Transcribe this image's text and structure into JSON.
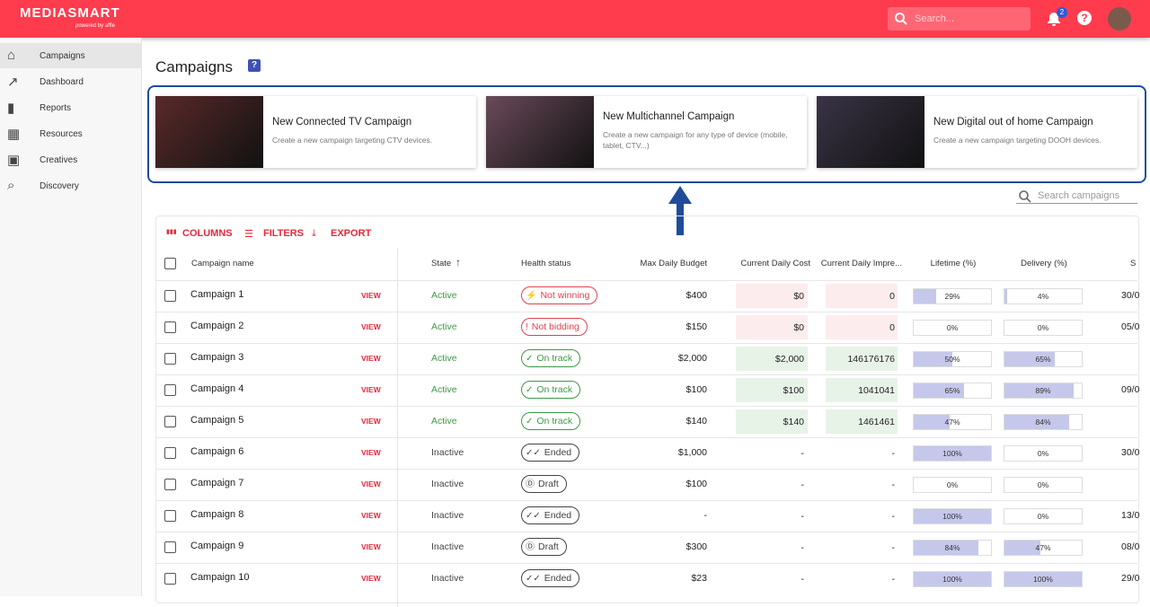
{
  "header": {
    "logo": "MEDIASMART",
    "logo_sub": "powered by affle",
    "search_placeholder": "Search...",
    "notification_count": "2"
  },
  "sidebar": {
    "items": [
      "Campaigns",
      "Dashboard",
      "Reports",
      "Resources",
      "Creatives",
      "Discovery"
    ]
  },
  "page": {
    "title": "Campaigns"
  },
  "cards": [
    {
      "title": "New Connected TV Campaign",
      "desc": "Create a new campaign targeting CTV devices.",
      "color": "#5a2a2a"
    },
    {
      "title": "New Multichannel Campaign",
      "desc": "Create a new campaign for any type of device (mobile, tablet, CTV...)",
      "color": "#6a4a5a"
    },
    {
      "title": "New Digital out of home Campaign",
      "desc": "Create a new campaign targeting DOOH devices.",
      "color": "#3a3446"
    }
  ],
  "search_campaigns": "Search campaigns",
  "toolbar": [
    "COLUMNS",
    "FILTERS",
    "EXPORT"
  ],
  "table": {
    "columns": [
      "Campaign name",
      "State",
      "Health status",
      "Max Daily Budget",
      "Current Daily Cost",
      "Current Daily Impre...",
      "Lifetime (%)",
      "Delivery (%)",
      "S"
    ],
    "view_label": "VIEW",
    "rows": [
      {
        "name": "Campaign 1",
        "state": "Active",
        "state_color": "#3d9a46",
        "health": "Not winning",
        "health_icon": "⚡",
        "health_color": "#e0424f",
        "cell_bg": "#fdecee",
        "budget": "$400",
        "cost": "$0",
        "impressions": "0",
        "lifetime": {
          "value": 29,
          "label": "29%"
        },
        "delivery": {
          "value": 4,
          "label": "4%"
        },
        "start": "30/0"
      },
      {
        "name": "Campaign 2",
        "state": "Active",
        "state_color": "#3d9a46",
        "health": "Not bidding",
        "health_icon": "!",
        "health_color": "#e0424f",
        "cell_bg": "#fdecee",
        "budget": "$150",
        "cost": "$0",
        "impressions": "0",
        "lifetime": {
          "value": 0,
          "label": "0%"
        },
        "delivery": {
          "value": 0,
          "label": "0%"
        },
        "start": "05/0"
      },
      {
        "name": "Campaign 3",
        "state": "Active",
        "state_color": "#3d9a46",
        "health": "On track",
        "health_icon": "✓",
        "health_color": "#3d9a46",
        "cell_bg": "#e8f3e8",
        "budget": "$2,000",
        "cost": "$2,000",
        "impressions": "146176176",
        "lifetime": {
          "value": 50,
          "label": "50%"
        },
        "delivery": {
          "value": 65,
          "label": "65%"
        },
        "start": null
      },
      {
        "name": "Campaign 4",
        "state": "Active",
        "state_color": "#3d9a46",
        "health": "On track",
        "health_icon": "✓",
        "health_color": "#3d9a46",
        "cell_bg": "#e8f3e8",
        "budget": "$100",
        "cost": "$100",
        "impressions": "1041041",
        "lifetime": {
          "value": 65,
          "label": "65%"
        },
        "delivery": {
          "value": 89,
          "label": "89%"
        },
        "start": "09/0"
      },
      {
        "name": "Campaign 5",
        "state": "Active",
        "state_color": "#3d9a46",
        "health": "On track",
        "health_icon": "✓",
        "health_color": "#3d9a46",
        "cell_bg": "#e8f3e8",
        "budget": "$140",
        "cost": "$140",
        "impressions": "1461461",
        "lifetime": {
          "value": 47,
          "label": "47%"
        },
        "delivery": {
          "value": 84,
          "label": "84%"
        },
        "start": null
      },
      {
        "name": "Campaign 6",
        "state": "Inactive",
        "state_color": "#444",
        "health": "Ended",
        "health_icon": "✓✓",
        "health_color": "#444",
        "cell_bg": null,
        "budget": "$1,000",
        "cost": "-",
        "impressions": "-",
        "lifetime": {
          "value": 100,
          "label": "100%"
        },
        "delivery": {
          "value": 0,
          "label": "0%"
        },
        "start": "30/0"
      },
      {
        "name": "Campaign 7",
        "state": "Inactive",
        "state_color": "#444",
        "health": "Draft",
        "health_icon": "Ⓓ",
        "health_color": "#444",
        "cell_bg": null,
        "budget": "$100",
        "cost": "-",
        "impressions": "-",
        "lifetime": {
          "value": 0,
          "label": "0%"
        },
        "delivery": {
          "value": 0,
          "label": "0%"
        },
        "start": null
      },
      {
        "name": "Campaign 8",
        "state": "Inactive",
        "state_color": "#444",
        "health": "Ended",
        "health_icon": "✓✓",
        "health_color": "#444",
        "cell_bg": null,
        "budget": "-",
        "cost": "-",
        "impressions": "-",
        "lifetime": {
          "value": 100,
          "label": "100%"
        },
        "delivery": {
          "value": 0,
          "label": "0%"
        },
        "start": "13/0"
      },
      {
        "name": "Campaign 9",
        "state": "Inactive",
        "state_color": "#444",
        "health": "Draft",
        "health_icon": "Ⓓ",
        "health_color": "#444",
        "cell_bg": null,
        "budget": "$300",
        "cost": "-",
        "impressions": "-",
        "lifetime": {
          "value": 84,
          "label": "84%"
        },
        "delivery": {
          "value": 47,
          "label": "47%"
        },
        "start": "08/0"
      },
      {
        "name": "Campaign 10",
        "state": "Inactive",
        "state_color": "#444",
        "health": "Ended",
        "health_icon": "✓✓",
        "health_color": "#444",
        "cell_bg": null,
        "budget": "$23",
        "cost": "-",
        "impressions": "-",
        "lifetime": {
          "value": 100,
          "label": "100%"
        },
        "delivery": {
          "value": 100,
          "label": "100%"
        },
        "start": "29/0"
      }
    ]
  }
}
